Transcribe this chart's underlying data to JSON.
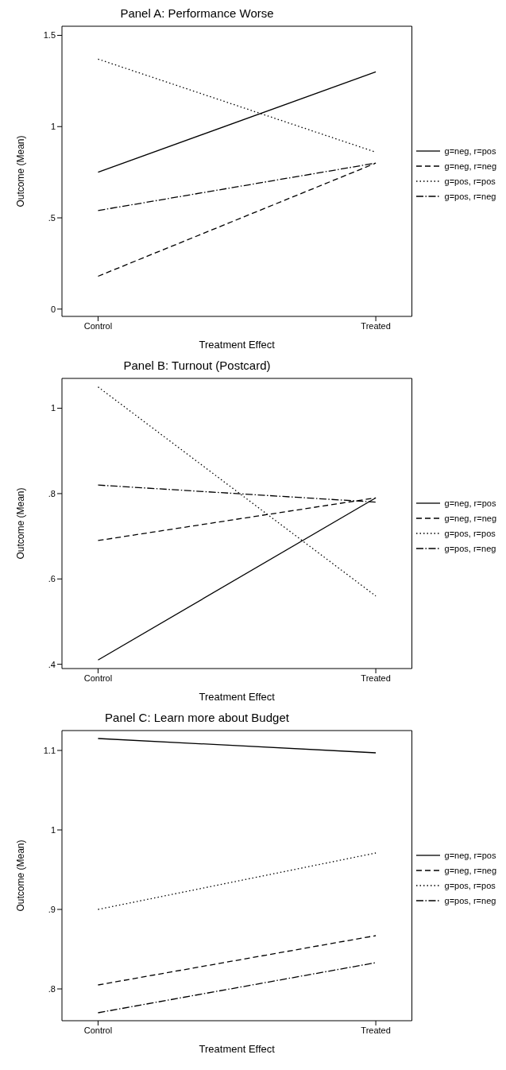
{
  "chart_data": [
    {
      "type": "line",
      "title": "Panel A: Performance Worse",
      "xlabel": "Treatment Effect",
      "ylabel": "Outcome (Mean)",
      "categories": [
        "Control",
        "Treated"
      ],
      "ylim": [
        -0.04,
        1.55
      ],
      "yticks": [
        0,
        {
          "value": 0.5,
          "label": ".5"
        },
        1,
        1.5
      ],
      "legend": "right",
      "marker": "none",
      "series": [
        {
          "name": "g=neg, r=pos",
          "color": "#000000",
          "line_style": "solid",
          "values": [
            0.75,
            1.3
          ]
        },
        {
          "name": "g=neg, r=neg",
          "color": "#000000",
          "line_style": "dashed",
          "values": [
            0.18,
            0.8
          ]
        },
        {
          "name": "g=pos, r=pos",
          "color": "#000000",
          "line_style": "dotted",
          "values": [
            1.37,
            0.86
          ]
        },
        {
          "name": "g=pos, r=neg",
          "color": "#000000",
          "line_style": "dashdot",
          "values": [
            0.54,
            0.8
          ]
        }
      ]
    },
    {
      "type": "line",
      "title": "Panel B: Turnout (Postcard)",
      "xlabel": "Treatment Effect",
      "ylabel": "Outcome (Mean)",
      "categories": [
        "Control",
        "Treated"
      ],
      "ylim": [
        0.39,
        1.07
      ],
      "yticks": [
        {
          "value": 0.4,
          "label": ".4"
        },
        {
          "value": 0.6,
          "label": ".6"
        },
        {
          "value": 0.8,
          "label": ".8"
        },
        1
      ],
      "legend": "right",
      "marker": "none",
      "series": [
        {
          "name": "g=neg, r=pos",
          "color": "#000000",
          "line_style": "solid",
          "values": [
            0.41,
            0.79
          ]
        },
        {
          "name": "g=neg, r=neg",
          "color": "#000000",
          "line_style": "dashed",
          "values": [
            0.69,
            0.79
          ]
        },
        {
          "name": "g=pos, r=pos",
          "color": "#000000",
          "line_style": "dotted",
          "values": [
            1.05,
            0.56
          ]
        },
        {
          "name": "g=pos, r=neg",
          "color": "#000000",
          "line_style": "dashdot",
          "values": [
            0.82,
            0.78
          ]
        }
      ]
    },
    {
      "type": "line",
      "title": "Panel C: Learn more about Budget",
      "xlabel": "Treatment Effect",
      "ylabel": "Outcome (Mean)",
      "categories": [
        "Control",
        "Treated"
      ],
      "ylim": [
        0.76,
        1.125
      ],
      "yticks": [
        {
          "value": 0.8,
          "label": ".8"
        },
        {
          "value": 0.9,
          "label": ".9"
        },
        1,
        1.1
      ],
      "legend": "right",
      "marker": "none",
      "series": [
        {
          "name": "g=neg, r=pos",
          "color": "#000000",
          "line_style": "solid",
          "values": [
            1.115,
            1.097
          ]
        },
        {
          "name": "g=neg, r=neg",
          "color": "#000000",
          "line_style": "dashed",
          "values": [
            0.805,
            0.867
          ]
        },
        {
          "name": "g=pos, r=pos",
          "color": "#000000",
          "line_style": "dotted",
          "values": [
            0.9,
            0.971
          ]
        },
        {
          "name": "g=pos, r=neg",
          "color": "#000000",
          "line_style": "dashdot",
          "values": [
            0.77,
            0.833
          ]
        }
      ]
    }
  ]
}
